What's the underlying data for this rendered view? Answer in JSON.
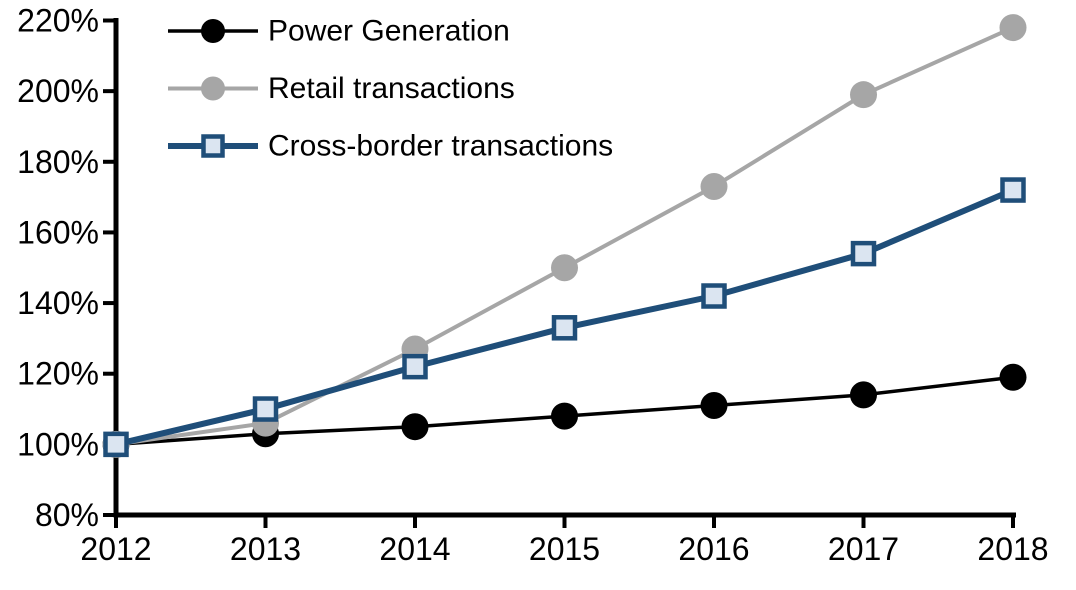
{
  "chart_data": {
    "type": "line",
    "title": "",
    "x_tick_labels": [
      "2012",
      "2013",
      "2014",
      "2015",
      "2016",
      "2017",
      "2018"
    ],
    "categories": [
      2012,
      2013,
      2014,
      2015,
      2016,
      2017,
      2018
    ],
    "y_axis": {
      "min": 80,
      "max": 220,
      "step": 20,
      "tick_suffix": "%",
      "ticks": [
        {
          "value": 220,
          "label": "220%"
        },
        {
          "value": 200,
          "label": "200%"
        },
        {
          "value": 180,
          "label": "180%"
        },
        {
          "value": 160,
          "label": "160%"
        },
        {
          "value": 140,
          "label": "140%"
        },
        {
          "value": 120,
          "label": "120%"
        },
        {
          "value": 100,
          "label": "100%"
        },
        {
          "value": 80,
          "label": "80%"
        }
      ]
    },
    "grid": false,
    "legend": {
      "position": "top-left-inside"
    },
    "series": [
      {
        "name": "Power Generation",
        "values": [
          100,
          103,
          105,
          108,
          111,
          114,
          119
        ],
        "color": "#000000",
        "line_width": 3.5,
        "marker": "circle",
        "marker_fill": "#000000"
      },
      {
        "name": "Retail transactions",
        "values": [
          100,
          106,
          127,
          150,
          173,
          199,
          218
        ],
        "color": "#a6a6a6",
        "line_width": 4,
        "marker": "circle",
        "marker_fill": "#a6a6a6"
      },
      {
        "name": "Cross-border transactions",
        "values": [
          100,
          110,
          122,
          133,
          142,
          154,
          172
        ],
        "color": "#1f4e79",
        "line_width": 6,
        "marker": "square",
        "marker_fill": "#dbe5f1",
        "marker_border": "#1f4e79"
      }
    ],
    "axis_color": "#000000",
    "background": "#ffffff"
  }
}
